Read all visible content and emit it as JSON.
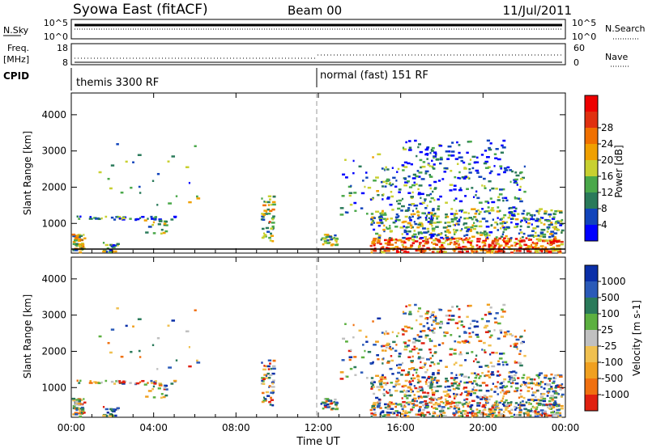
{
  "header": {
    "title": "Syowa East (fitACF)",
    "beam": "Beam 00",
    "date": "11/Jul/2011"
  },
  "panels": {
    "nsky": {
      "left_label": "N.Sky",
      "right_label": "N.Search",
      "left_ticks": [
        "10^5",
        "10^0"
      ],
      "right_ticks": [
        "10^5",
        "10^0"
      ]
    },
    "freq": {
      "left_label_1": "Freq.",
      "left_label_2": "[MHz]",
      "right_label": "Nave",
      "left_ticks": [
        "18",
        "8"
      ],
      "right_ticks": [
        "60",
        "0"
      ]
    },
    "cpid": {
      "label": "CPID",
      "segments": [
        {
          "label": "themis 3300 RF",
          "start_hour": 0
        },
        {
          "label": "normal (fast) 151 RF",
          "start_hour": 12
        }
      ]
    }
  },
  "chart_data": [
    {
      "type": "heatmap",
      "name": "power",
      "ylabel": "Slant Range [km]",
      "y_ticks": [
        "1000",
        "2000",
        "3000",
        "4000"
      ],
      "ylim": [
        180,
        4600
      ],
      "colorbar": {
        "label": "Power [dB]",
        "ticks": [
          "4",
          "8",
          "12",
          "16",
          "20",
          "24",
          "28"
        ],
        "colors": [
          "#0000ff",
          "#1144bb",
          "#2a7a5a",
          "#4aa84a",
          "#c8d030",
          "#f0a000",
          "#f07000",
          "#e03010",
          "#ee0000"
        ]
      }
    },
    {
      "type": "heatmap",
      "name": "velocity",
      "ylabel": "Slant Range [km]",
      "y_ticks": [
        "1000",
        "2000",
        "3000",
        "4000"
      ],
      "ylim": [
        180,
        4600
      ],
      "colorbar": {
        "label": "Velocity [m s-1]",
        "ticks": [
          "1000",
          "500",
          "100",
          "25",
          "-25",
          "-100",
          "-500",
          "-1000"
        ],
        "colors": [
          "#0a2fa8",
          "#2a5ab8",
          "#2a7a5a",
          "#5cb040",
          "#c0c0c0",
          "#f0c050",
          "#f0a020",
          "#f07010",
          "#e02010"
        ]
      }
    }
  ],
  "x_axis": {
    "ticks": [
      "00:00",
      "04:00",
      "08:00",
      "12:00",
      "16:00",
      "20:00",
      "00:00"
    ],
    "xlabel": "Time UT",
    "range_hours": [
      0,
      24
    ]
  }
}
